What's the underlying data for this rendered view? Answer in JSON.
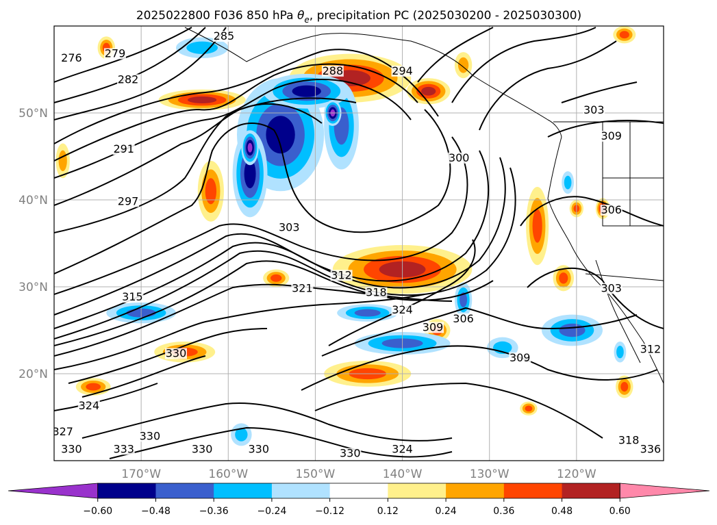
{
  "title": "2025022800 F036 850 hPa θe, precipitation PC (2025030200 - 2025030300)",
  "title_parts": {
    "prefix": "2025022800 F036 850 hPa ",
    "theta": "θ",
    "sub_e": "e",
    "suffix": ", precipitation PC (2025030200 - 2025030300)"
  },
  "map": {
    "lon_range": [
      -180,
      -110
    ],
    "lat_range": [
      10,
      60
    ],
    "lon_ticks": [
      {
        "lon": -170,
        "label": "170°W"
      },
      {
        "lon": -160,
        "label": "160°W"
      },
      {
        "lon": -150,
        "label": "150°W"
      },
      {
        "lon": -140,
        "label": "140°W"
      },
      {
        "lon": -130,
        "label": "130°W"
      },
      {
        "lon": -120,
        "label": "120°W"
      }
    ],
    "lat_ticks": [
      {
        "lat": 20,
        "label": "20°N"
      },
      {
        "lat": 30,
        "label": "30°N"
      },
      {
        "lat": 40,
        "label": "40°N"
      },
      {
        "lat": 50,
        "label": "50°N"
      }
    ],
    "grid": true,
    "contour_color": "#000000",
    "gridline_color": "#b0b0b0"
  },
  "contour_labels": [
    {
      "text": "276",
      "lon": -178,
      "lat": 56
    },
    {
      "text": "279",
      "lon": -173,
      "lat": 56.5
    },
    {
      "text": "282",
      "lon": -171.5,
      "lat": 53.5
    },
    {
      "text": "285",
      "lon": -160.5,
      "lat": 58.5
    },
    {
      "text": "288",
      "lon": -148,
      "lat": 54.5
    },
    {
      "text": "294",
      "lon": -140,
      "lat": 54.5
    },
    {
      "text": "291",
      "lon": -172,
      "lat": 45.5
    },
    {
      "text": "297",
      "lon": -171.5,
      "lat": 39.5
    },
    {
      "text": "300",
      "lon": -133.5,
      "lat": 44.5
    },
    {
      "text": "303",
      "lon": -153,
      "lat": 36.5
    },
    {
      "text": "303",
      "lon": -118,
      "lat": 50
    },
    {
      "text": "306",
      "lon": -116,
      "lat": 38.5
    },
    {
      "text": "309",
      "lon": -116,
      "lat": 47
    },
    {
      "text": "312",
      "lon": -147,
      "lat": 31
    },
    {
      "text": "318",
      "lon": -143,
      "lat": 29
    },
    {
      "text": "321",
      "lon": -151.5,
      "lat": 29.5
    },
    {
      "text": "324",
      "lon": -140,
      "lat": 27
    },
    {
      "text": "309",
      "lon": -136.5,
      "lat": 25
    },
    {
      "text": "306",
      "lon": -133,
      "lat": 26
    },
    {
      "text": "309",
      "lon": -126.5,
      "lat": 21.5
    },
    {
      "text": "303",
      "lon": -116,
      "lat": 29.5
    },
    {
      "text": "312",
      "lon": -111.5,
      "lat": 22.5
    },
    {
      "text": "315",
      "lon": -171,
      "lat": 28.5
    },
    {
      "text": "330",
      "lon": -166,
      "lat": 22
    },
    {
      "text": "324",
      "lon": -176,
      "lat": 16
    },
    {
      "text": "327",
      "lon": -179,
      "lat": 13
    },
    {
      "text": "330",
      "lon": -178,
      "lat": 11
    },
    {
      "text": "330",
      "lon": -169,
      "lat": 12.5
    },
    {
      "text": "333",
      "lon": -172,
      "lat": 11
    },
    {
      "text": "330",
      "lon": -163,
      "lat": 11
    },
    {
      "text": "330",
      "lon": -156.5,
      "lat": 11
    },
    {
      "text": "330",
      "lon": -146,
      "lat": 10.5
    },
    {
      "text": "324",
      "lon": -140,
      "lat": 11
    },
    {
      "text": "318",
      "lon": -114,
      "lat": 12
    },
    {
      "text": "336",
      "lon": -111.5,
      "lat": 11
    }
  ],
  "shading": [
    {
      "lon": -163,
      "lat": 51.5,
      "rx": 5,
      "ry": 1.2,
      "level": 0.48
    },
    {
      "lon": -146,
      "lat": 54,
      "rx": 7,
      "ry": 2.8,
      "level": 0.48
    },
    {
      "lon": -137,
      "lat": 52.5,
      "rx": 2.5,
      "ry": 1.5,
      "level": 0.48
    },
    {
      "lon": -174,
      "lat": 57.5,
      "rx": 1,
      "ry": 1.3,
      "level": 0.36
    },
    {
      "lon": -114.5,
      "lat": 59,
      "rx": 1.3,
      "ry": 1,
      "level": 0.36
    },
    {
      "lon": -133,
      "lat": 55.5,
      "rx": 1,
      "ry": 1.5,
      "level": 0.24
    },
    {
      "lon": -162,
      "lat": 41,
      "rx": 1.5,
      "ry": 3.5,
      "level": 0.36
    },
    {
      "lon": -140,
      "lat": 32,
      "rx": 8,
      "ry": 2.8,
      "level": 0.48
    },
    {
      "lon": -124.5,
      "lat": 37,
      "rx": 1.3,
      "ry": 4.5,
      "level": 0.36
    },
    {
      "lon": -121.5,
      "lat": 31,
      "rx": 1.2,
      "ry": 1.5,
      "level": 0.36
    },
    {
      "lon": -117,
      "lat": 39,
      "rx": 0.8,
      "ry": 1.2,
      "level": 0.48
    },
    {
      "lon": -120,
      "lat": 39,
      "rx": 0.8,
      "ry": 1,
      "level": 0.36
    },
    {
      "lon": -154.5,
      "lat": 31,
      "rx": 1.5,
      "ry": 1,
      "level": 0.36
    },
    {
      "lon": -144,
      "lat": 20,
      "rx": 5,
      "ry": 1.5,
      "level": 0.36
    },
    {
      "lon": -136,
      "lat": 25,
      "rx": 1.5,
      "ry": 1.3,
      "level": 0.36
    },
    {
      "lon": -165,
      "lat": 22.5,
      "rx": 3.5,
      "ry": 1.2,
      "level": 0.36
    },
    {
      "lon": -175.5,
      "lat": 18.5,
      "rx": 2,
      "ry": 1,
      "level": 0.36
    },
    {
      "lon": -125.5,
      "lat": 16,
      "rx": 1,
      "ry": 0.8,
      "level": 0.36
    },
    {
      "lon": -114.5,
      "lat": 18.5,
      "rx": 1,
      "ry": 1.3,
      "level": 0.36
    },
    {
      "lon": -179,
      "lat": 44.5,
      "rx": 0.8,
      "ry": 2,
      "level": 0.24
    },
    {
      "lon": -154,
      "lat": 47.5,
      "rx": 5,
      "ry": 6.5,
      "level": -0.48
    },
    {
      "lon": -147,
      "lat": 48.5,
      "rx": 2,
      "ry": 5,
      "level": -0.36
    },
    {
      "lon": -151,
      "lat": 52.5,
      "rx": 5,
      "ry": 2,
      "level": -0.48
    },
    {
      "lon": -157.5,
      "lat": 43,
      "rx": 2,
      "ry": 5,
      "level": -0.48
    },
    {
      "lon": -157.5,
      "lat": 46,
      "rx": 1,
      "ry": 2,
      "level": -0.6
    },
    {
      "lon": -148,
      "lat": 50,
      "rx": 1,
      "ry": 1.5,
      "level": -0.6
    },
    {
      "lon": -170,
      "lat": 27,
      "rx": 4,
      "ry": 1.2,
      "level": -0.36
    },
    {
      "lon": -144,
      "lat": 27,
      "rx": 3.5,
      "ry": 1,
      "level": -0.36
    },
    {
      "lon": -140,
      "lat": 23.5,
      "rx": 5.5,
      "ry": 1.3,
      "level": -0.36
    },
    {
      "lon": -133,
      "lat": 28.5,
      "rx": 1,
      "ry": 2,
      "level": -0.36
    },
    {
      "lon": -120.5,
      "lat": 25,
      "rx": 3.5,
      "ry": 1.8,
      "level": -0.36
    },
    {
      "lon": -128.5,
      "lat": 23,
      "rx": 1.8,
      "ry": 1.2,
      "level": -0.24
    },
    {
      "lon": -158.5,
      "lat": 13,
      "rx": 1.2,
      "ry": 1.3,
      "level": -0.24
    },
    {
      "lon": -115,
      "lat": 22.5,
      "rx": 0.7,
      "ry": 1.2,
      "level": -0.24
    },
    {
      "lon": -121,
      "lat": 42,
      "rx": 0.7,
      "ry": 1.3,
      "level": -0.24
    },
    {
      "lon": -163,
      "lat": 57.5,
      "rx": 3,
      "ry": 1.2,
      "level": -0.24
    }
  ],
  "colorbar": {
    "levels": [
      -0.6,
      -0.48,
      -0.36,
      -0.24,
      -0.12,
      0.12,
      0.24,
      0.36,
      0.48,
      0.6
    ],
    "colors": [
      "#9932cc",
      "#00008b",
      "#3a5fcd",
      "#00bfff",
      "#b0e2ff",
      "#ffffff",
      "#fff08c",
      "#ffa500",
      "#ff4500",
      "#b22222",
      "#ff88aa"
    ],
    "tick_labels": [
      "−0.60",
      "−0.48",
      "−0.36",
      "−0.24",
      "−0.12",
      "0.12",
      "0.24",
      "0.36",
      "0.48",
      "0.60"
    ],
    "extend": "both"
  }
}
